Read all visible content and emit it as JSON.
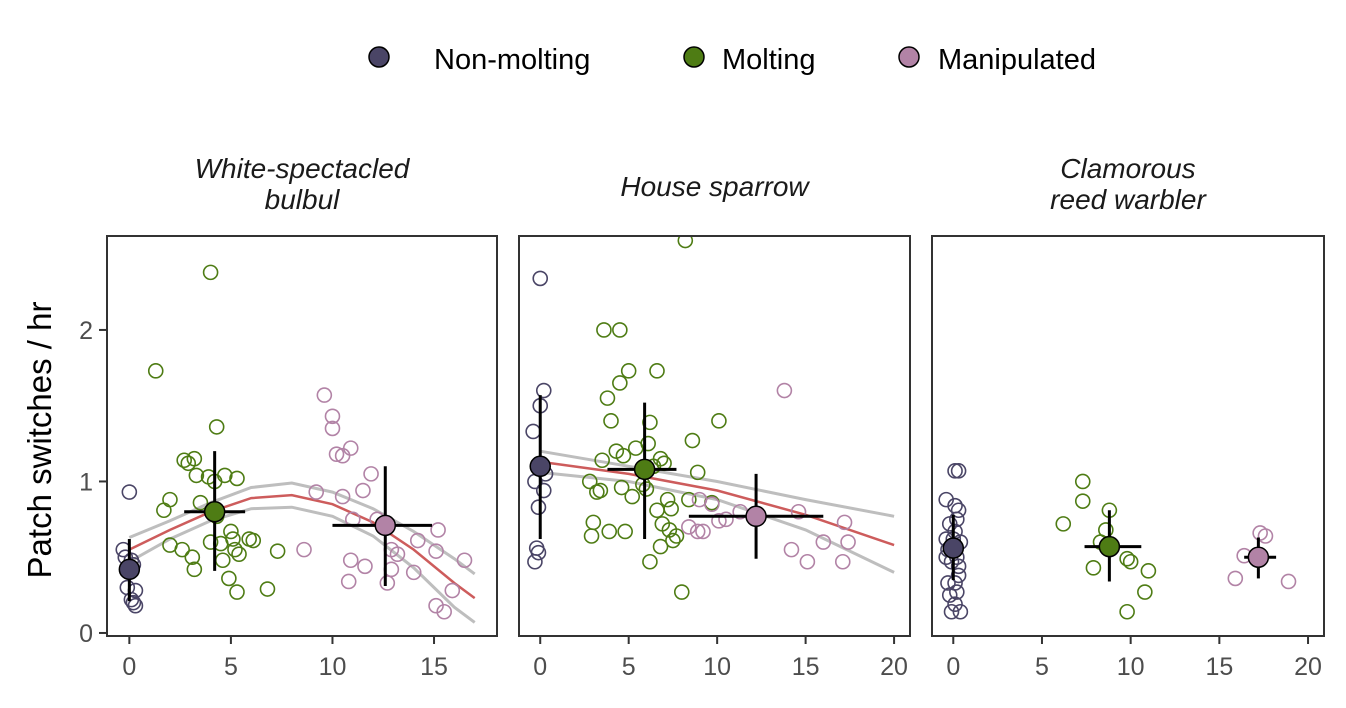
{
  "legend": [
    {
      "label": "Non-molting",
      "color": "#4a4566"
    },
    {
      "label": "Molting",
      "color": "#4e7c14"
    },
    {
      "label": "Manipulated",
      "color": "#b283a6"
    }
  ],
  "y_axis_title": "Patch switches / hr",
  "chart_data": {
    "type": "scatter",
    "ylabel": "Patch switches / hr",
    "ylim": [
      -0.02,
      2.62
    ],
    "yticks": [
      0,
      1,
      2
    ],
    "grid": false,
    "legend_position": "top",
    "smooth_color": "#cd5c5c",
    "ci_color": "#bebebe",
    "panels": [
      {
        "title_lines": [
          "White-spectacled",
          "bulbul"
        ],
        "xlim": [
          -1.1,
          18.1
        ],
        "xticks": [
          0,
          5,
          10,
          15
        ],
        "groups": [
          {
            "group": "Non-molting",
            "points": [
              [
                -0.3,
                0.55
              ],
              [
                -0.2,
                0.5
              ],
              [
                0.0,
                0.93
              ],
              [
                0.1,
                0.48
              ],
              [
                0.2,
                0.45
              ],
              [
                -0.1,
                0.3
              ],
              [
                0.3,
                0.28
              ],
              [
                0.1,
                0.22
              ],
              [
                0.3,
                0.18
              ],
              [
                0.2,
                0.2
              ]
            ]
          },
          {
            "group": "Molting",
            "points": [
              [
                1.3,
                1.73
              ],
              [
                2.0,
                0.88
              ],
              [
                1.7,
                0.81
              ],
              [
                2.0,
                0.58
              ],
              [
                2.7,
                1.14
              ],
              [
                2.9,
                1.12
              ],
              [
                3.2,
                1.15
              ],
              [
                3.3,
                1.04
              ],
              [
                3.5,
                0.86
              ],
              [
                3.9,
                1.03
              ],
              [
                4.0,
                2.38
              ],
              [
                4.3,
                1.36
              ],
              [
                4.2,
                1.0
              ],
              [
                4.3,
                0.77
              ],
              [
                4.5,
                0.59
              ],
              [
                4.7,
                1.04
              ],
              [
                5.0,
                0.67
              ],
              [
                5.1,
                0.62
              ],
              [
                5.2,
                0.55
              ],
              [
                5.4,
                0.52
              ],
              [
                5.9,
                0.62
              ],
              [
                6.1,
                0.61
              ],
              [
                5.3,
                1.02
              ],
              [
                4.6,
                0.48
              ],
              [
                4.9,
                0.36
              ],
              [
                5.3,
                0.27
              ],
              [
                6.8,
                0.29
              ],
              [
                7.3,
                0.54
              ],
              [
                3.1,
                0.5
              ],
              [
                2.6,
                0.55
              ],
              [
                4.0,
                0.6
              ],
              [
                3.2,
                0.42
              ]
            ]
          },
          {
            "group": "Manipulated",
            "points": [
              [
                9.6,
                1.57
              ],
              [
                10.0,
                1.43
              ],
              [
                10.0,
                1.35
              ],
              [
                10.5,
                1.17
              ],
              [
                10.2,
                1.18
              ],
              [
                10.5,
                0.9
              ],
              [
                10.9,
                1.22
              ],
              [
                11.0,
                0.75
              ],
              [
                11.5,
                0.94
              ],
              [
                11.9,
                1.05
              ],
              [
                11.6,
                0.44
              ],
              [
                10.9,
                0.48
              ],
              [
                10.8,
                0.34
              ],
              [
                12.2,
                0.75
              ],
              [
                12.9,
                0.42
              ],
              [
                12.7,
                0.33
              ],
              [
                13.2,
                0.52
              ],
              [
                14.2,
                0.61
              ],
              [
                15.1,
                0.54
              ],
              [
                15.1,
                0.18
              ],
              [
                15.2,
                0.68
              ],
              [
                15.5,
                0.14
              ],
              [
                15.9,
                0.28
              ],
              [
                16.5,
                0.48
              ],
              [
                12.9,
                0.55
              ],
              [
                14.0,
                0.4
              ],
              [
                9.2,
                0.93
              ],
              [
                8.6,
                0.55
              ]
            ]
          }
        ],
        "means": [
          {
            "group": "Non-molting",
            "x": 0.0,
            "y": 0.42,
            "xerr": [
              0.0,
              0.0
            ],
            "yerr": [
              0.21,
              0.62
            ]
          },
          {
            "group": "Molting",
            "x": 4.2,
            "y": 0.8,
            "xerr": [
              2.7,
              5.7
            ],
            "yerr": [
              0.41,
              1.2
            ]
          },
          {
            "group": "Manipulated",
            "x": 12.6,
            "y": 0.71,
            "xerr": [
              10.0,
              14.9
            ],
            "yerr": [
              0.31,
              1.1
            ]
          }
        ],
        "trend": {
          "x": [
            0,
            2,
            4,
            6,
            8,
            10,
            12,
            14,
            16,
            17
          ],
          "y": [
            0.55,
            0.68,
            0.8,
            0.89,
            0.91,
            0.85,
            0.73,
            0.55,
            0.33,
            0.23
          ],
          "ci_lower": [
            0.47,
            0.62,
            0.74,
            0.82,
            0.83,
            0.77,
            0.64,
            0.43,
            0.17,
            0.07
          ],
          "ci_upper": [
            0.63,
            0.74,
            0.86,
            0.96,
            0.99,
            0.93,
            0.82,
            0.67,
            0.49,
            0.39
          ]
        }
      },
      {
        "title_lines": [
          "House sparrow"
        ],
        "xlim": [
          -1.2,
          20.9
        ],
        "xticks": [
          0,
          5,
          10,
          15,
          20
        ],
        "groups": [
          {
            "group": "Non-molting",
            "points": [
              [
                -0.4,
                1.33
              ],
              [
                0.0,
                2.34
              ],
              [
                0.2,
                1.6
              ],
              [
                0.0,
                1.5
              ],
              [
                -0.3,
                1.0
              ],
              [
                0.2,
                0.94
              ],
              [
                -0.1,
                0.83
              ],
              [
                -0.2,
                0.56
              ],
              [
                -0.1,
                0.53
              ],
              [
                -0.3,
                0.47
              ],
              [
                0.3,
                1.05
              ]
            ]
          },
          {
            "group": "Molting",
            "points": [
              [
                8.2,
                2.59
              ],
              [
                3.6,
                2.0
              ],
              [
                4.5,
                2.0
              ],
              [
                6.6,
                1.73
              ],
              [
                5.0,
                1.73
              ],
              [
                4.5,
                1.65
              ],
              [
                3.8,
                1.55
              ],
              [
                4.0,
                1.4
              ],
              [
                6.2,
                1.39
              ],
              [
                10.1,
                1.4
              ],
              [
                3.5,
                1.14
              ],
              [
                4.7,
                1.17
              ],
              [
                4.3,
                1.2
              ],
              [
                5.4,
                1.22
              ],
              [
                6.1,
                1.25
              ],
              [
                6.4,
                1.1
              ],
              [
                6.8,
                1.15
              ],
              [
                7.0,
                1.12
              ],
              [
                8.6,
                1.27
              ],
              [
                8.9,
                1.06
              ],
              [
                2.8,
                1.0
              ],
              [
                3.2,
                0.93
              ],
              [
                3.4,
                0.94
              ],
              [
                4.6,
                0.96
              ],
              [
                6.0,
                0.95
              ],
              [
                5.8,
                0.98
              ],
              [
                7.2,
                0.88
              ],
              [
                8.4,
                0.88
              ],
              [
                9.7,
                0.86
              ],
              [
                3.0,
                0.73
              ],
              [
                3.9,
                0.67
              ],
              [
                4.8,
                0.67
              ],
              [
                6.6,
                0.81
              ],
              [
                6.9,
                0.72
              ],
              [
                7.3,
                0.68
              ],
              [
                7.5,
                0.61
              ],
              [
                7.7,
                0.64
              ],
              [
                6.8,
                0.57
              ],
              [
                2.9,
                0.64
              ],
              [
                6.2,
                0.47
              ],
              [
                8.0,
                0.27
              ],
              [
                5.2,
                0.9
              ],
              [
                7.4,
                0.82
              ]
            ]
          },
          {
            "group": "Manipulated",
            "points": [
              [
                13.8,
                1.6
              ],
              [
                9.0,
                0.88
              ],
              [
                9.7,
                0.85
              ],
              [
                10.1,
                0.74
              ],
              [
                10.5,
                0.75
              ],
              [
                8.4,
                0.7
              ],
              [
                8.9,
                0.67
              ],
              [
                9.2,
                0.67
              ],
              [
                14.6,
                0.8
              ],
              [
                17.2,
                0.73
              ],
              [
                16.0,
                0.6
              ],
              [
                17.4,
                0.6
              ],
              [
                14.2,
                0.55
              ],
              [
                15.1,
                0.47
              ],
              [
                17.1,
                0.47
              ],
              [
                11.3,
                0.8
              ]
            ]
          }
        ],
        "means": [
          {
            "group": "Non-molting",
            "x": 0.0,
            "y": 1.1,
            "xerr": [
              0.0,
              0.0
            ],
            "yerr": [
              0.62,
              1.57
            ]
          },
          {
            "group": "Molting",
            "x": 5.9,
            "y": 1.08,
            "xerr": [
              3.8,
              7.7
            ],
            "yerr": [
              0.62,
              1.52
            ]
          },
          {
            "group": "Manipulated",
            "x": 12.2,
            "y": 0.77,
            "xerr": [
              8.4,
              16.0
            ],
            "yerr": [
              0.49,
              1.05
            ]
          }
        ],
        "trend": {
          "x": [
            0,
            5,
            10,
            15,
            20
          ],
          "y": [
            1.13,
            1.05,
            0.94,
            0.78,
            0.58
          ],
          "ci_lower": [
            1.06,
            1.0,
            0.88,
            0.68,
            0.4
          ],
          "ci_upper": [
            1.2,
            1.1,
            1.0,
            0.88,
            0.77
          ]
        }
      },
      {
        "title_lines": [
          "Clamorous",
          "reed warbler"
        ],
        "xlim": [
          -1.2,
          20.9
        ],
        "xticks": [
          0,
          5,
          10,
          15,
          20
        ],
        "groups": [
          {
            "group": "Non-molting",
            "points": [
              [
                0.1,
                1.07
              ],
              [
                0.3,
                1.07
              ],
              [
                -0.4,
                0.88
              ],
              [
                0.1,
                0.84
              ],
              [
                0.3,
                0.81
              ],
              [
                0.2,
                0.75
              ],
              [
                -0.2,
                0.72
              ],
              [
                -0.4,
                0.62
              ],
              [
                0.1,
                0.67
              ],
              [
                0.4,
                0.6
              ],
              [
                -0.3,
                0.55
              ],
              [
                0.2,
                0.5
              ],
              [
                -0.1,
                0.47
              ],
              [
                0.3,
                0.44
              ],
              [
                -0.3,
                0.33
              ],
              [
                0.1,
                0.33
              ],
              [
                -0.2,
                0.25
              ],
              [
                0.2,
                0.27
              ],
              [
                0.1,
                0.19
              ],
              [
                -0.1,
                0.14
              ],
              [
                0.4,
                0.14
              ],
              [
                -0.4,
                0.5
              ],
              [
                0.3,
                0.38
              ],
              [
                0.0,
                0.62
              ]
            ]
          },
          {
            "group": "Molting",
            "points": [
              [
                7.3,
                1.0
              ],
              [
                7.3,
                0.87
              ],
              [
                6.2,
                0.72
              ],
              [
                8.8,
                0.81
              ],
              [
                8.6,
                0.68
              ],
              [
                8.3,
                0.6
              ],
              [
                9.8,
                0.49
              ],
              [
                10.0,
                0.47
              ],
              [
                7.9,
                0.43
              ],
              [
                11.0,
                0.41
              ],
              [
                10.8,
                0.27
              ],
              [
                9.8,
                0.14
              ]
            ]
          },
          {
            "group": "Manipulated",
            "points": [
              [
                17.3,
                0.66
              ],
              [
                17.6,
                0.64
              ],
              [
                16.4,
                0.51
              ],
              [
                15.9,
                0.36
              ],
              [
                18.9,
                0.34
              ]
            ]
          }
        ],
        "means": [
          {
            "group": "Non-molting",
            "x": 0.0,
            "y": 0.56,
            "xerr": [
              0.0,
              0.0
            ],
            "yerr": [
              0.35,
              0.78
            ]
          },
          {
            "group": "Molting",
            "x": 8.8,
            "y": 0.57,
            "xerr": [
              7.4,
              10.6
            ],
            "yerr": [
              0.34,
              0.81
            ]
          },
          {
            "group": "Manipulated",
            "x": 17.2,
            "y": 0.5,
            "xerr": [
              16.4,
              18.2
            ],
            "yerr": [
              0.36,
              0.63
            ]
          }
        ],
        "trend": null
      }
    ]
  }
}
